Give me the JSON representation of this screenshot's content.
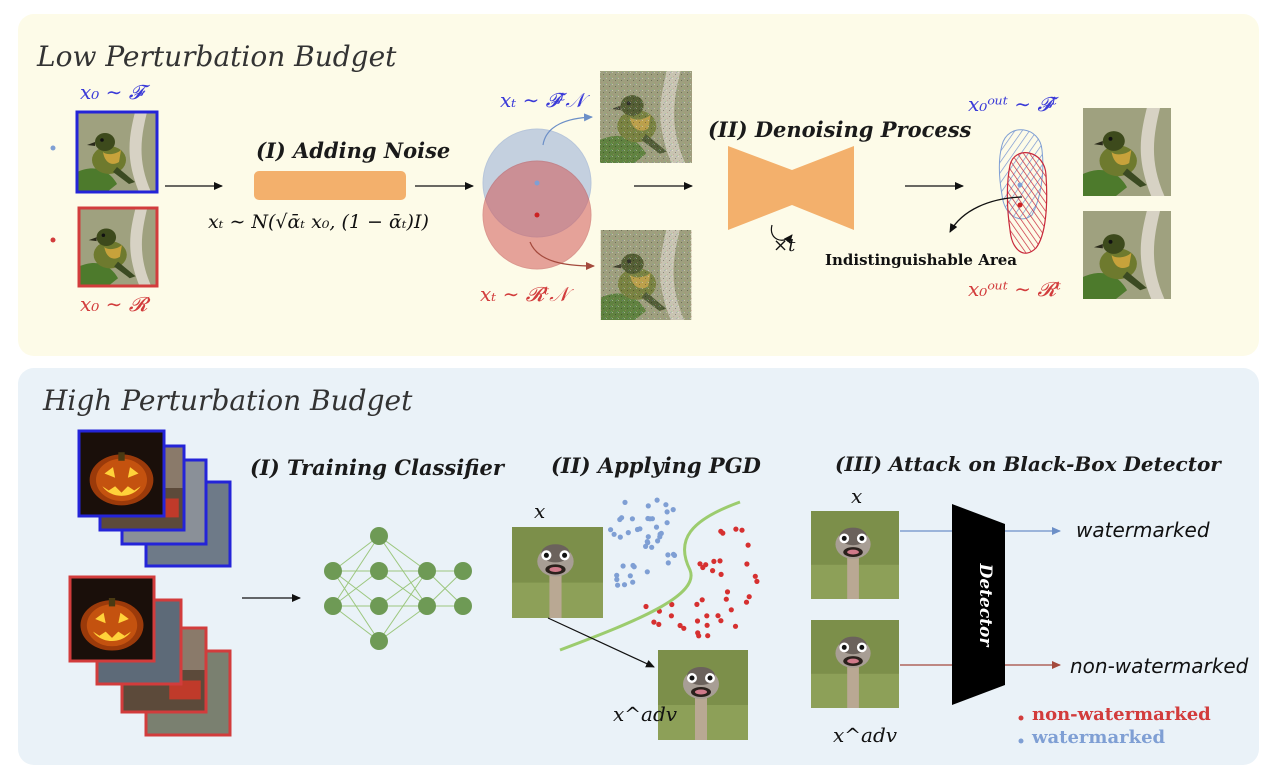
{
  "low": {
    "title": "Low Perturbation Budget",
    "input_fake": "x₀ ∼ 𝓕",
    "input_real": "x₀ ∼ 𝓡",
    "step1": "(I) Adding Noise",
    "noise_formula": "xₜ ∼ N(√ᾱₜ x₀, (1 − ᾱₜ)I)",
    "noisy_fake": "xₜ ∼ 𝓕ᵗ𝒩",
    "noisy_real": "xₜ ∼ 𝓡ᵗ𝒩",
    "step2": "(II) Denoising Process",
    "times_t": "×t",
    "out_fake": "x₀ᵒᵘᵗ ∼ 𝓕ᵗ",
    "out_real": "x₀ᵒᵘᵗ ∼ 𝓡ᵗ",
    "indistinguishable": "Indistinguishable Area"
  },
  "high": {
    "title": "High Perturbation Budget",
    "step1": "(I) Training Classifier",
    "step2": "(II) Applying PGD",
    "step3": "(III) Attack on Black-Box Detector",
    "x_label": "x",
    "xadv_label": "x^adv",
    "x_label2": "x",
    "xadv_label2": "x^adv",
    "detector": "Detector",
    "out_watermarked": "watermarked",
    "out_non_watermarked": "non-watermarked",
    "legend_non_watermarked": "non-watermarked",
    "legend_watermarked": "watermarked"
  },
  "colors": {
    "fake_blue": "#3a3ad8",
    "real_red": "#d23c3c",
    "orange": "#f3b06c",
    "net_green": "#6e9a55",
    "boundary_green": "#9ccc6e",
    "legend_blue": "#7f9fd4"
  }
}
